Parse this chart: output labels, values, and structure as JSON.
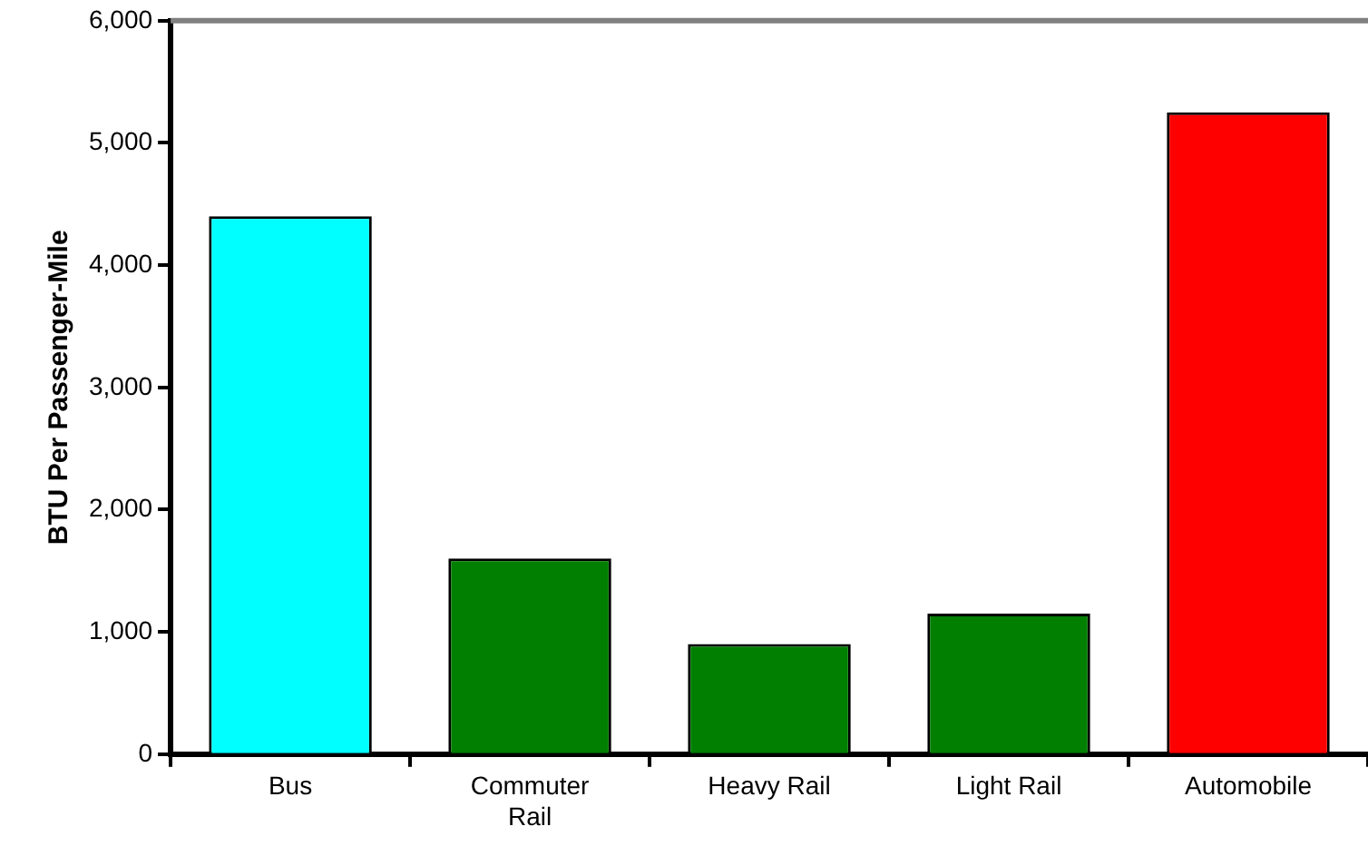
{
  "chart_data": {
    "type": "bar",
    "ylabel": "BTU Per Passenger-Mile",
    "categories": [
      "Bus",
      "Commuter Rail",
      "Heavy Rail",
      "Light Rail",
      "Automobile"
    ],
    "values": [
      4400,
      1600,
      900,
      1150,
      5250
    ],
    "colors": [
      "#00ffff",
      "#007f00",
      "#007f00",
      "#007f00",
      "#ff0000"
    ],
    "ylim": [
      0,
      6000
    ],
    "yticks": [
      {
        "value": 0,
        "label": "0"
      },
      {
        "value": 1000,
        "label": "1,000"
      },
      {
        "value": 2000,
        "label": "2,000"
      },
      {
        "value": 3000,
        "label": "3,000"
      },
      {
        "value": 4000,
        "label": "4,000"
      },
      {
        "value": 5000,
        "label": "5,000"
      },
      {
        "value": 6000,
        "label": "6,000"
      }
    ],
    "ref_lines": [
      {
        "axis": "y",
        "value": 6000,
        "label": null,
        "color": "#808080"
      }
    ],
    "grid": false,
    "legend": false
  }
}
